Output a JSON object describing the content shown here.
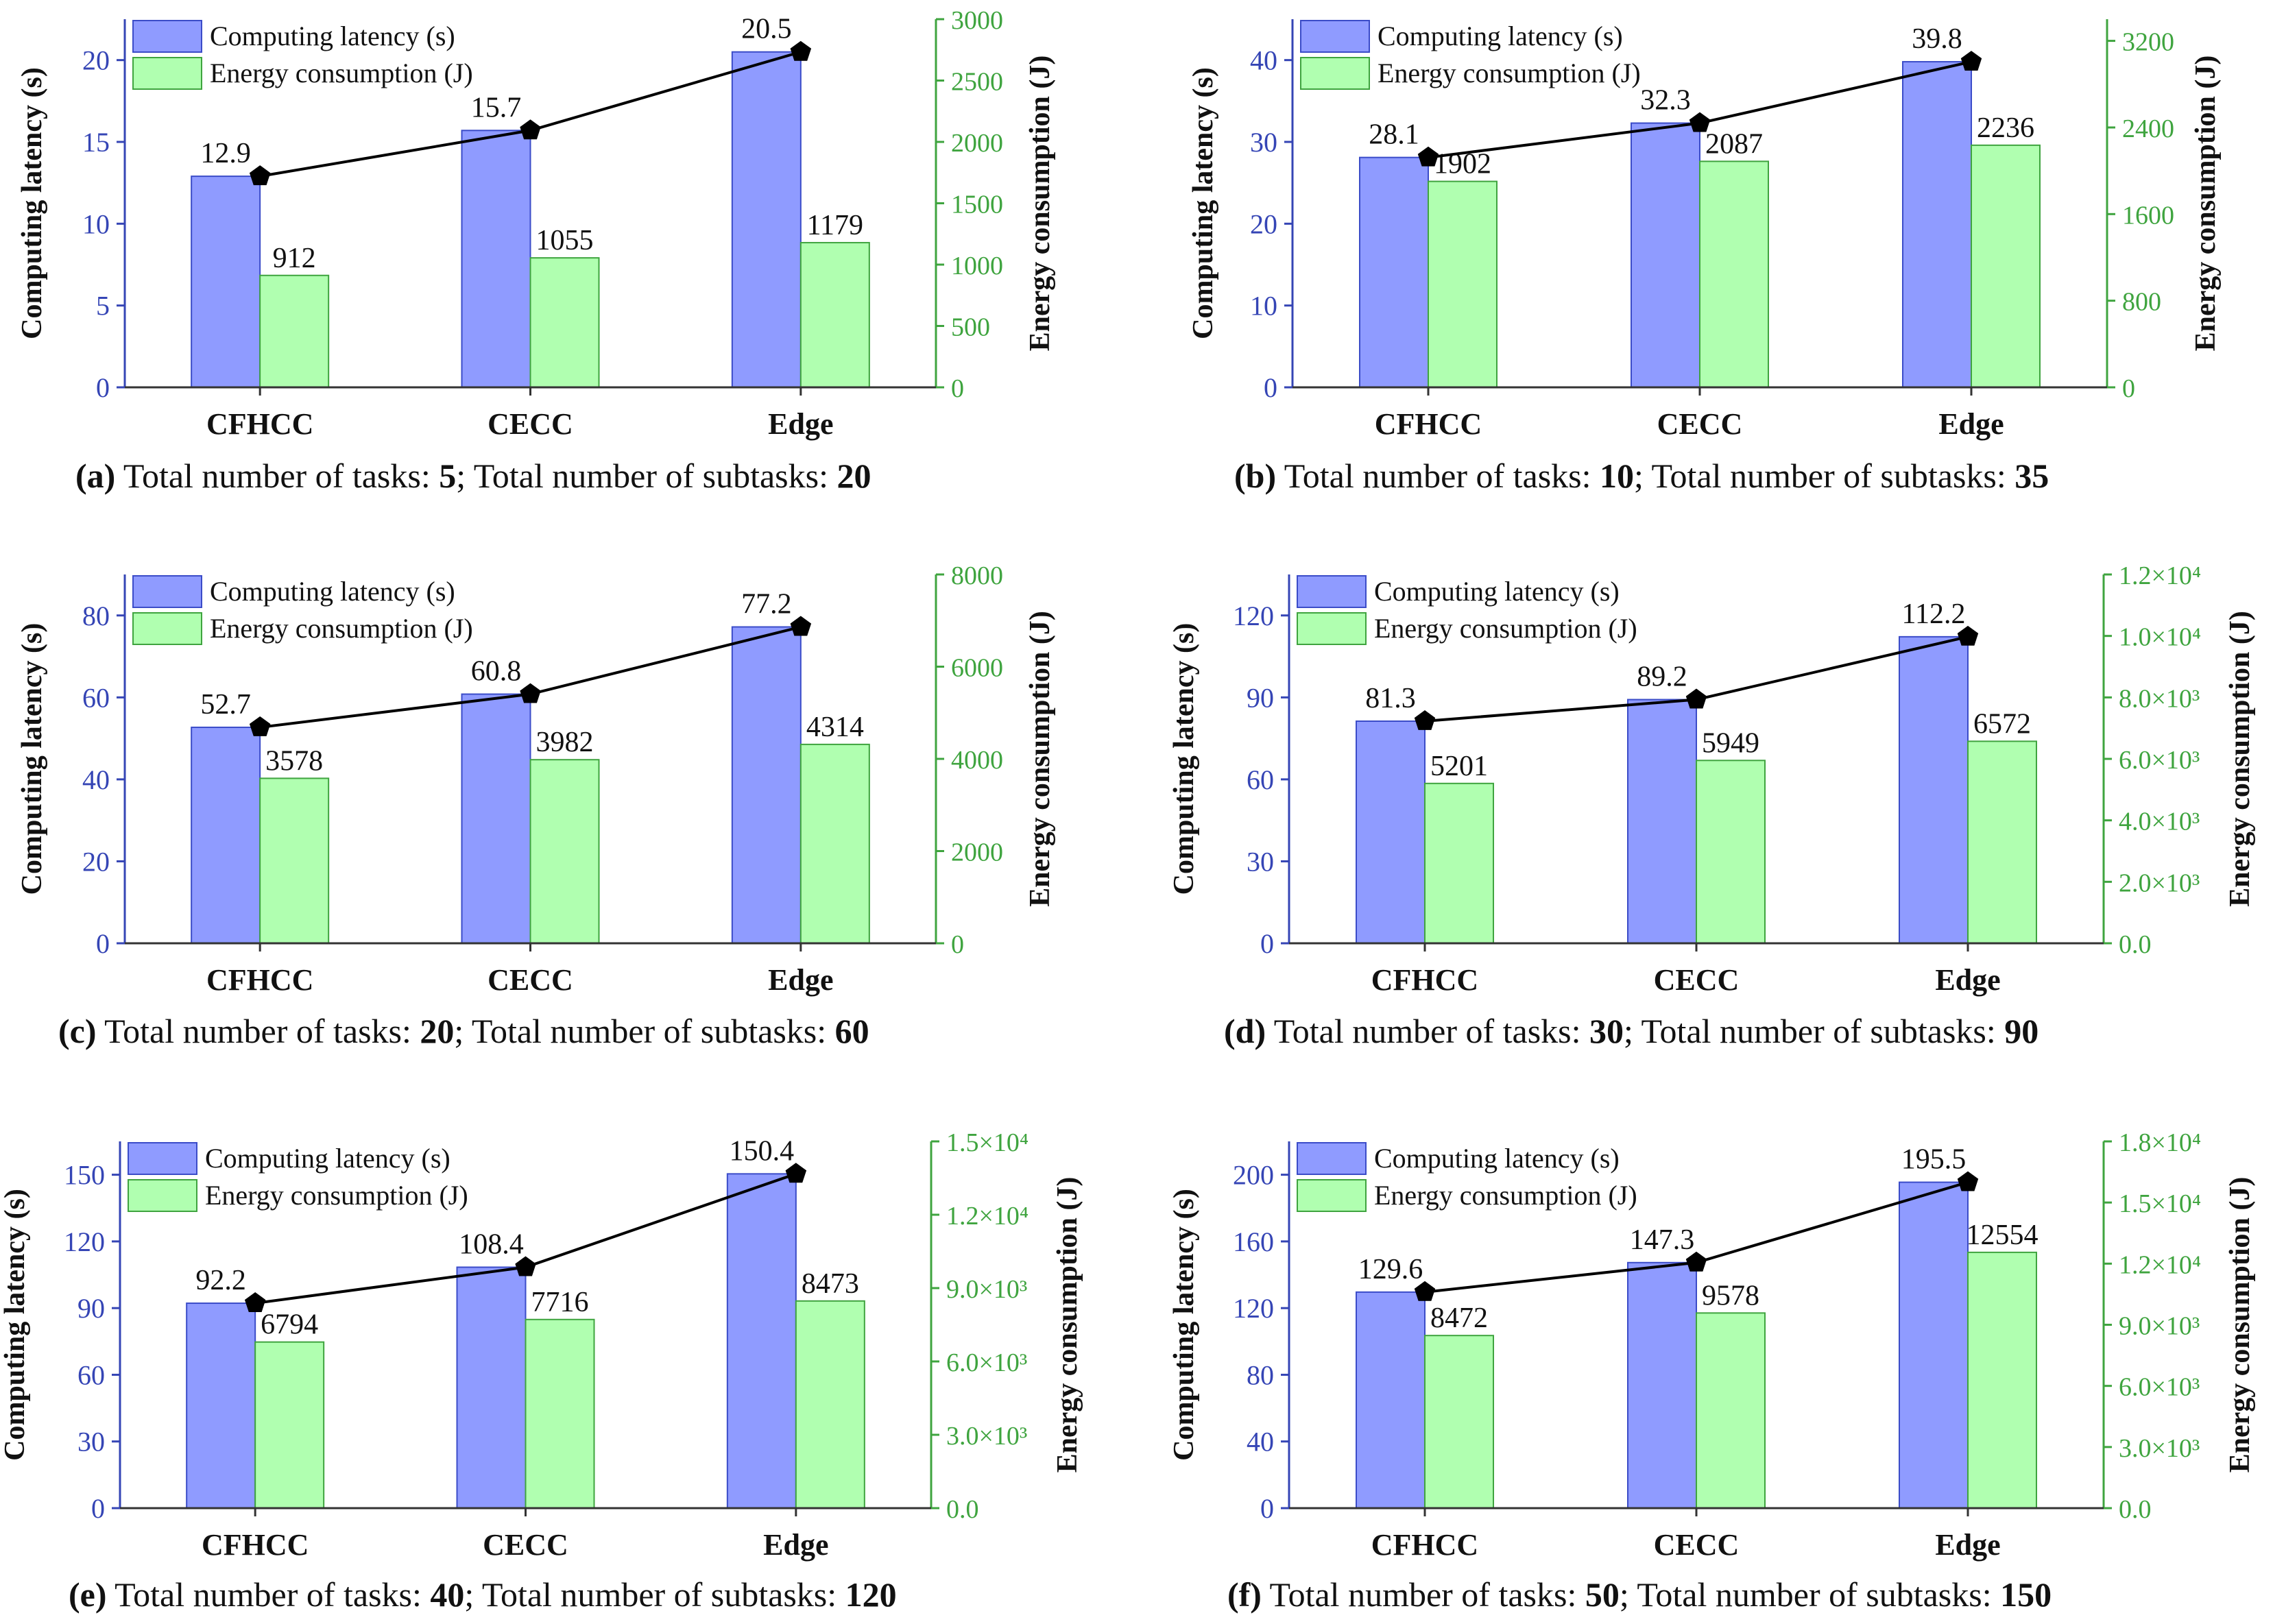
{
  "legend": {
    "latency": "Computing latency (s)",
    "energy": "Energy consumption (J)"
  },
  "colors": {
    "latency_fill": "#8f9bff",
    "latency_stroke": "#3b4cc8",
    "energy_fill": "#b0ffb0",
    "energy_stroke": "#3fa43f",
    "left_axis": "#3545b5",
    "right_axis": "#3fa43f",
    "line": "#000000"
  },
  "chart_data": [
    {
      "id": "a",
      "type": "bar",
      "categories": [
        "CFHCC",
        "CECC",
        "Edge"
      ],
      "series": [
        {
          "name": "Computing latency (s)",
          "axis": "left",
          "values": [
            12.9,
            15.7,
            20.5
          ],
          "labels": [
            "12.9",
            "15.7",
            "20.5"
          ]
        },
        {
          "name": "Energy consumption (J)",
          "axis": "right",
          "values": [
            912,
            1055,
            1179
          ],
          "labels": [
            "912",
            "1055",
            "1179"
          ]
        }
      ],
      "ylabel": "Computing latency (s)",
      "y2label": "Energy consumption (J)",
      "ylim": [
        0,
        22.5
      ],
      "y2lim": [
        0,
        3000
      ],
      "yticks": [
        0,
        5,
        10,
        15,
        20
      ],
      "yticklabels": [
        "0",
        "5",
        "10",
        "15",
        "20"
      ],
      "y2ticks": [
        0,
        500,
        1000,
        1500,
        2000,
        2500,
        3000
      ],
      "y2ticklabels": [
        "0",
        "500",
        "1000",
        "1500",
        "2000",
        "2500",
        "3000"
      ],
      "caption": {
        "label": "(a)",
        "t1": " Total number of tasks: ",
        "n1": "5",
        "t2": "; Total number of subtasks: ",
        "n2": "20"
      }
    },
    {
      "id": "b",
      "type": "bar",
      "categories": [
        "CFHCC",
        "CECC",
        "Edge"
      ],
      "series": [
        {
          "name": "Computing latency (s)",
          "axis": "left",
          "values": [
            28.1,
            32.3,
            39.8
          ],
          "labels": [
            "28.1",
            "32.3",
            "39.8"
          ]
        },
        {
          "name": "Energy consumption (J)",
          "axis": "right",
          "values": [
            1902,
            2087,
            2236
          ],
          "labels": [
            "1902",
            "2087",
            "2236"
          ]
        }
      ],
      "ylabel": "Computing latency (s)",
      "y2label": "Energy consumption (J)",
      "ylim": [
        0,
        45
      ],
      "y2lim": [
        0,
        3400
      ],
      "yticks": [
        0,
        10,
        20,
        30,
        40
      ],
      "yticklabels": [
        "0",
        "10",
        "20",
        "30",
        "40"
      ],
      "y2ticks": [
        0,
        800,
        1600,
        2400,
        3200
      ],
      "y2ticklabels": [
        "0",
        "800",
        "1600",
        "2400",
        "3200"
      ],
      "caption": {
        "label": "(b)",
        "t1": " Total number of tasks: ",
        "n1": "10",
        "t2": "; Total number of subtasks: ",
        "n2": "35"
      }
    },
    {
      "id": "c",
      "type": "bar",
      "categories": [
        "CFHCC",
        "CECC",
        "Edge"
      ],
      "series": [
        {
          "name": "Computing latency (s)",
          "axis": "left",
          "values": [
            52.7,
            60.8,
            77.2
          ],
          "labels": [
            "52.7",
            "60.8",
            "77.2"
          ]
        },
        {
          "name": "Energy consumption (J)",
          "axis": "right",
          "values": [
            3578,
            3982,
            4314
          ],
          "labels": [
            "3578",
            "3982",
            "4314"
          ]
        }
      ],
      "ylabel": "Computing latency (s)",
      "y2label": "Energy consumption (J)",
      "ylim": [
        0,
        90
      ],
      "y2lim": [
        0,
        8000
      ],
      "yticks": [
        0,
        20,
        40,
        60,
        80
      ],
      "yticklabels": [
        "0",
        "20",
        "40",
        "60",
        "80"
      ],
      "y2ticks": [
        0,
        2000,
        4000,
        6000,
        8000
      ],
      "y2ticklabels": [
        "0",
        "2000",
        "4000",
        "6000",
        "8000"
      ],
      "caption": {
        "label": "(c)",
        "t1": " Total number of tasks: ",
        "n1": "20",
        "t2": "; Total number of subtasks: ",
        "n2": "60"
      }
    },
    {
      "id": "d",
      "type": "bar",
      "categories": [
        "CFHCC",
        "CECC",
        "Edge"
      ],
      "series": [
        {
          "name": "Computing latency (s)",
          "axis": "left",
          "values": [
            81.3,
            89.2,
            112.2
          ],
          "labels": [
            "81.3",
            "89.2",
            "112.2"
          ]
        },
        {
          "name": "Energy consumption (J)",
          "axis": "right",
          "values": [
            5201,
            5949,
            6572
          ],
          "labels": [
            "5201",
            "5949",
            "6572"
          ]
        }
      ],
      "ylabel": "Computing latency (s)",
      "y2label": "Energy consumption (J)",
      "ylim": [
        0,
        135
      ],
      "y2lim": [
        0,
        12000
      ],
      "yticks": [
        0,
        30,
        60,
        90,
        120
      ],
      "yticklabels": [
        "0",
        "30",
        "60",
        "90",
        "120"
      ],
      "y2ticks": [
        0,
        2000,
        4000,
        6000,
        8000,
        10000,
        12000
      ],
      "y2ticklabels": [
        "0.0",
        "2.0×10³",
        "4.0×10³",
        "6.0×10³",
        "8.0×10³",
        "1.0×10⁴",
        "1.2×10⁴"
      ],
      "caption": {
        "label": "(d)",
        "t1": " Total number of tasks: ",
        "n1": "30",
        "t2": "; Total number of subtasks: ",
        "n2": "90"
      }
    },
    {
      "id": "e",
      "type": "bar",
      "categories": [
        "CFHCC",
        "CECC",
        "Edge"
      ],
      "series": [
        {
          "name": "Computing latency (s)",
          "axis": "left",
          "values": [
            92.2,
            108.4,
            150.4
          ],
          "labels": [
            "92.2",
            "108.4",
            "150.4"
          ]
        },
        {
          "name": "Energy consumption (J)",
          "axis": "right",
          "values": [
            6794,
            7716,
            8473
          ],
          "labels": [
            "6794",
            "7716",
            "8473"
          ]
        }
      ],
      "ylabel": "Computing latency (s)",
      "y2label": "Energy consumption (J)",
      "ylim": [
        0,
        165
      ],
      "y2lim": [
        0,
        15000
      ],
      "yticks": [
        0,
        30,
        60,
        90,
        120,
        150
      ],
      "yticklabels": [
        "0",
        "30",
        "60",
        "90",
        "120",
        "150"
      ],
      "y2ticks": [
        0,
        3000,
        6000,
        9000,
        12000,
        15000
      ],
      "y2ticklabels": [
        "0.0",
        "3.0×10³",
        "6.0×10³",
        "9.0×10³",
        "1.2×10⁴",
        "1.5×10⁴"
      ],
      "caption": {
        "label": "(e)",
        "t1": " Total number of tasks: ",
        "n1": "40",
        "t2": "; Total number of subtasks: ",
        "n2": "120"
      }
    },
    {
      "id": "f",
      "type": "bar",
      "categories": [
        "CFHCC",
        "CECC",
        "Edge"
      ],
      "series": [
        {
          "name": "Computing latency (s)",
          "axis": "left",
          "values": [
            129.6,
            147.3,
            195.5
          ],
          "labels": [
            "129.6",
            "147.3",
            "195.5"
          ]
        },
        {
          "name": "Energy consumption (J)",
          "axis": "right",
          "values": [
            8472,
            9578,
            12554
          ],
          "labels": [
            "8472",
            "9578",
            "12554"
          ]
        }
      ],
      "ylabel": "Computing latency (s)",
      "y2label": "Energy consumption (J)",
      "ylim": [
        0,
        220
      ],
      "y2lim": [
        0,
        18000
      ],
      "yticks": [
        0,
        40,
        80,
        120,
        160,
        200
      ],
      "yticklabels": [
        "0",
        "40",
        "80",
        "120",
        "160",
        "200"
      ],
      "y2ticks": [
        0,
        3000,
        6000,
        9000,
        12000,
        15000,
        18000
      ],
      "y2ticklabels": [
        "0.0",
        "3.0×10³",
        "6.0×10³",
        "9.0×10³",
        "1.2×10⁴",
        "1.5×10⁴",
        "1.8×10⁴"
      ],
      "caption": {
        "label": "(f)",
        "t1": " Total number of tasks: ",
        "n1": "50",
        "t2": "; Total number of subtasks: ",
        "n2": "150"
      }
    }
  ]
}
